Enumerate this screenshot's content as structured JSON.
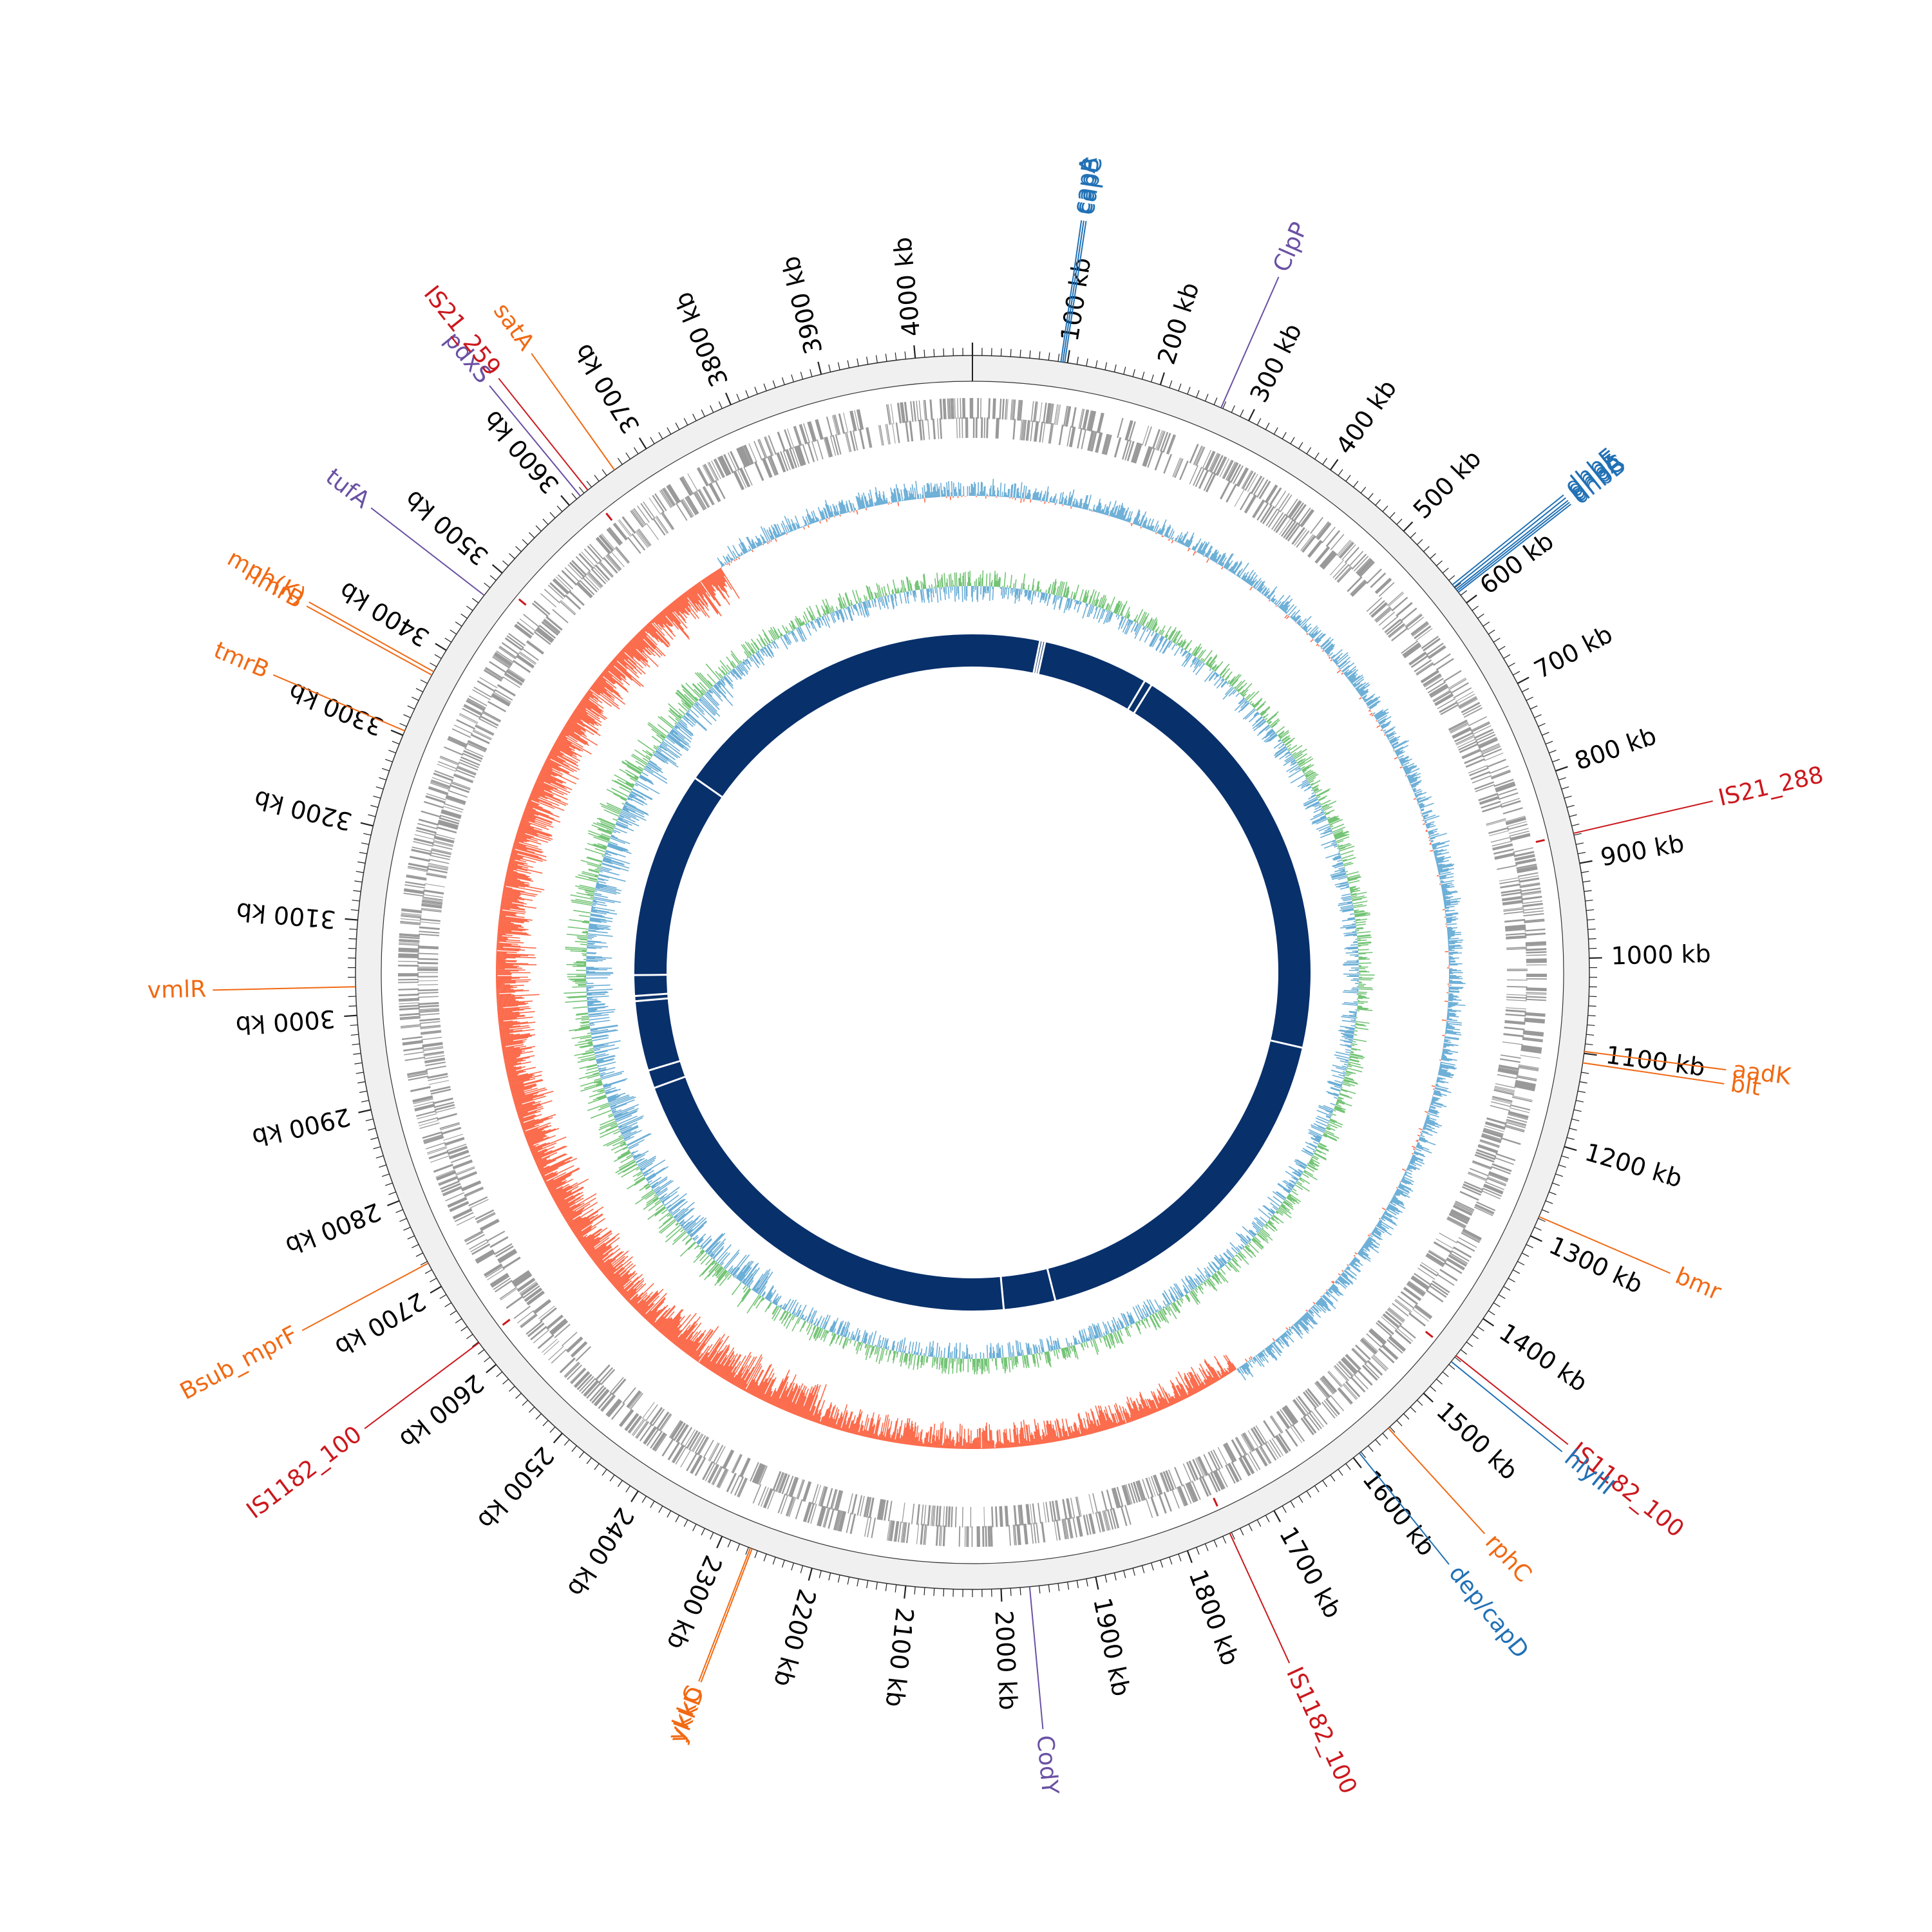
{
  "genome": {
    "length_kb": 4060,
    "tick_labels": [
      {
        "kb": 100,
        "text": "100 kb"
      },
      {
        "kb": 200,
        "text": "200 kb"
      },
      {
        "kb": 300,
        "text": "300 kb"
      },
      {
        "kb": 400,
        "text": "400 kb"
      },
      {
        "kb": 500,
        "text": "500 kb"
      },
      {
        "kb": 600,
        "text": "600 kb"
      },
      {
        "kb": 700,
        "text": "700 kb"
      },
      {
        "kb": 800,
        "text": "800 kb"
      },
      {
        "kb": 900,
        "text": "900 kb"
      },
      {
        "kb": 1000,
        "text": "1000 kb"
      },
      {
        "kb": 1100,
        "text": "1100 kb"
      },
      {
        "kb": 1200,
        "text": "1200 kb"
      },
      {
        "kb": 1300,
        "text": "1300 kb"
      },
      {
        "kb": 1400,
        "text": "1400 kb"
      },
      {
        "kb": 1500,
        "text": "1500 kb"
      },
      {
        "kb": 1600,
        "text": "1600 kb"
      },
      {
        "kb": 1700,
        "text": "1700 kb"
      },
      {
        "kb": 1800,
        "text": "1800 kb"
      },
      {
        "kb": 1900,
        "text": "1900 kb"
      },
      {
        "kb": 2000,
        "text": "2000 kb"
      },
      {
        "kb": 2100,
        "text": "2100 kb"
      },
      {
        "kb": 2200,
        "text": "2200 kb"
      },
      {
        "kb": 2300,
        "text": "2300 kb"
      },
      {
        "kb": 2400,
        "text": "2400 kb"
      },
      {
        "kb": 2500,
        "text": "2500 kb"
      },
      {
        "kb": 2600,
        "text": "2600 kb"
      },
      {
        "kb": 2700,
        "text": "2700 kb"
      },
      {
        "kb": 2800,
        "text": "2800 kb"
      },
      {
        "kb": 2900,
        "text": "2900 kb"
      },
      {
        "kb": 3000,
        "text": "3000 kb"
      },
      {
        "kb": 3100,
        "text": "3100 kb"
      },
      {
        "kb": 3200,
        "text": "3200 kb"
      },
      {
        "kb": 3300,
        "text": "3300 kb"
      },
      {
        "kb": 3400,
        "text": "3400 kb"
      },
      {
        "kb": 3500,
        "text": "3500 kb"
      },
      {
        "kb": 3600,
        "text": "3600 kb"
      },
      {
        "kb": 3700,
        "text": "3700 kb"
      },
      {
        "kb": 3800,
        "text": "3800 kb"
      },
      {
        "kb": 3900,
        "text": "3900 kb"
      },
      {
        "kb": 4000,
        "text": "4000 kb"
      }
    ]
  },
  "colors": {
    "backbone": "#f0f0f0",
    "cds": "#999999",
    "gc_positive": "#6baed6",
    "gc_negative": "#fb6a4a",
    "skew_positive": "#74c476",
    "skew_negative": "#6baed6",
    "inner_ring": "#08306b",
    "cat_resistance": "#f16913",
    "cat_virulence": "#2171b5",
    "cat_regulator": "#6a51a3",
    "cat_mobile": "#cb181d"
  },
  "gene_labels": [
    {
      "text": "capA",
      "kb": 93,
      "category": "virulence"
    },
    {
      "text": "capB",
      "kb": 95,
      "category": "virulence"
    },
    {
      "text": "capC",
      "kb": 97,
      "category": "virulence"
    },
    {
      "text": "ClpP",
      "kb": 268,
      "category": "regulator"
    },
    {
      "text": "dhbF",
      "kb": 576,
      "category": "virulence"
    },
    {
      "text": "dhbE",
      "kb": 579,
      "category": "virulence"
    },
    {
      "text": "dhbA",
      "kb": 582,
      "category": "virulence"
    },
    {
      "text": "dhbC",
      "kb": 584,
      "category": "virulence"
    },
    {
      "text": "dhbB",
      "kb": 586,
      "category": "virulence"
    },
    {
      "text": "IS21_288",
      "kb": 868,
      "category": "mobile"
    },
    {
      "text": "aadK",
      "kb": 1098,
      "category": "resistance"
    },
    {
      "text": "blt",
      "kb": 1110,
      "category": "resistance"
    },
    {
      "text": "bmr",
      "kb": 1278,
      "category": "resistance"
    },
    {
      "text": "IS1182_100",
      "kb": 1448,
      "category": "mobile"
    },
    {
      "text": "hlyIII",
      "kb": 1456,
      "category": "virulence"
    },
    {
      "text": "rphC",
      "kb": 1552,
      "category": "resistance"
    },
    {
      "text": "dep/capD",
      "kb": 1592,
      "category": "virulence"
    },
    {
      "text": "IS1182_100",
      "kb": 1752,
      "category": "mobile"
    },
    {
      "text": "CodY",
      "kb": 1970,
      "category": "regulator"
    },
    {
      "text": "ykkD",
      "kb": 2266,
      "category": "resistance"
    },
    {
      "text": "ykkC",
      "kb": 2268,
      "category": "resistance"
    },
    {
      "text": "IS1182_100",
      "kb": 2629,
      "category": "mobile"
    },
    {
      "text": "Bsub_mprF",
      "kb": 2728,
      "category": "resistance"
    },
    {
      "text": "vmlR",
      "kb": 3030,
      "category": "resistance"
    },
    {
      "text": "tmrB",
      "kb": 3305,
      "category": "resistance"
    },
    {
      "text": "lmrB",
      "kb": 3370,
      "category": "resistance"
    },
    {
      "text": "mph(K)",
      "kb": 3374,
      "category": "resistance"
    },
    {
      "text": "tufA",
      "kb": 3470,
      "category": "regulator"
    },
    {
      "text": "pdxS",
      "kb": 3615,
      "category": "regulator"
    },
    {
      "text": "IS21_259",
      "kb": 3625,
      "category": "mobile"
    },
    {
      "text": "satA",
      "kb": 3660,
      "category": "resistance"
    }
  ]
}
